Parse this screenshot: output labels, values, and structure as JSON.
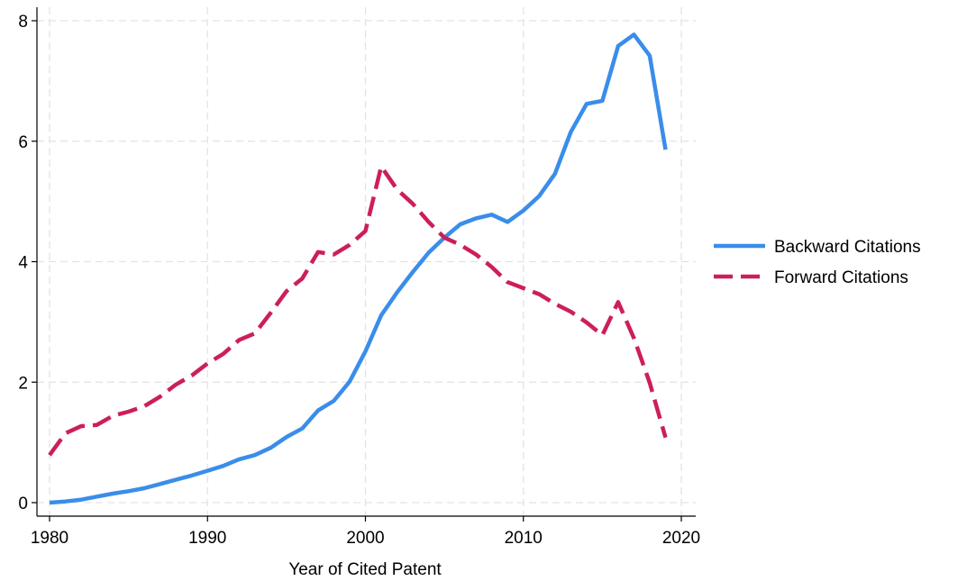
{
  "chart_data": {
    "type": "line",
    "xlabel": "Year of Cited Patent",
    "ylabel": "",
    "xlim": [
      1980,
      2020
    ],
    "ylim": [
      0,
      8
    ],
    "xticks": [
      1980,
      1990,
      2000,
      2010,
      2020
    ],
    "yticks": [
      0,
      2,
      4,
      6,
      8
    ],
    "grid": true,
    "legend_position": "right",
    "x": [
      1980,
      1981,
      1982,
      1983,
      1984,
      1985,
      1986,
      1987,
      1988,
      1989,
      1990,
      1991,
      1992,
      1993,
      1994,
      1995,
      1996,
      1997,
      1998,
      1999,
      2000,
      2001,
      2002,
      2003,
      2004,
      2005,
      2006,
      2007,
      2008,
      2009,
      2010,
      2011,
      2012,
      2013,
      2014,
      2015,
      2016,
      2017,
      2018,
      2019
    ],
    "series": [
      {
        "name": "Backward Citations",
        "color": "#3a8dea",
        "dash": "solid",
        "values": [
          0.0,
          0.02,
          0.05,
          0.1,
          0.15,
          0.19,
          0.24,
          0.31,
          0.38,
          0.45,
          0.53,
          0.61,
          0.72,
          0.79,
          0.91,
          1.09,
          1.23,
          1.53,
          1.69,
          2.01,
          2.51,
          3.11,
          3.49,
          3.83,
          4.15,
          4.4,
          4.62,
          4.72,
          4.78,
          4.66,
          4.85,
          5.09,
          5.46,
          6.15,
          6.62,
          6.67,
          7.58,
          7.77,
          7.42,
          5.86
        ]
      },
      {
        "name": "Forward Citations",
        "color": "#cc1f5a",
        "dash": "dashed",
        "values": [
          0.79,
          1.15,
          1.27,
          1.29,
          1.44,
          1.51,
          1.6,
          1.76,
          1.96,
          2.11,
          2.31,
          2.47,
          2.7,
          2.81,
          3.15,
          3.51,
          3.72,
          4.16,
          4.12,
          4.28,
          4.51,
          5.58,
          5.2,
          4.96,
          4.66,
          4.4,
          4.28,
          4.12,
          3.91,
          3.66,
          3.56,
          3.46,
          3.3,
          3.17,
          2.99,
          2.78,
          3.33,
          2.73,
          1.99,
          1.08
        ]
      }
    ]
  }
}
